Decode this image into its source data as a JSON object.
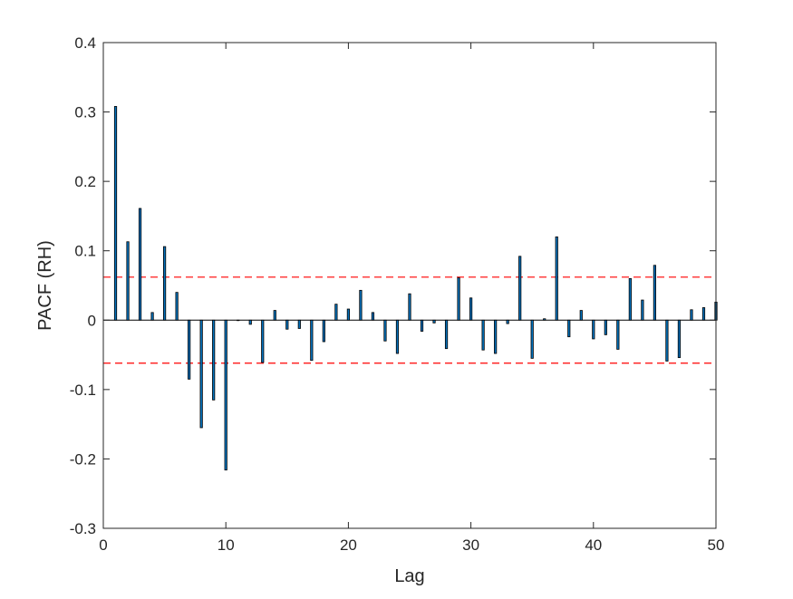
{
  "chart_data": {
    "type": "bar",
    "title": "",
    "xlabel": "Lag",
    "ylabel": "PACF (RH)",
    "xlim": [
      0,
      50
    ],
    "ylim": [
      -0.3,
      0.4
    ],
    "x_ticks": [
      0,
      10,
      20,
      30,
      40,
      50
    ],
    "x_tick_labels": [
      "0",
      "10",
      "20",
      "30",
      "40",
      "50"
    ],
    "y_ticks": [
      -0.3,
      -0.2,
      -0.1,
      0,
      0.1,
      0.2,
      0.3,
      0.4
    ],
    "y_tick_labels": [
      "-0.3",
      "-0.2",
      "-0.1",
      "0",
      "0.1",
      "0.2",
      "0.3",
      "0.4"
    ],
    "grid": false,
    "bar_color": "#0072BD",
    "bar_edge_color": "#000000",
    "confidence_bounds": {
      "upper": 0.062,
      "lower": -0.062,
      "color": "#FF0000",
      "style": "dashed"
    },
    "series": [
      {
        "lags": [
          1,
          2,
          3,
          4,
          5,
          6,
          7,
          8,
          9,
          10,
          11,
          12,
          13,
          14,
          15,
          16,
          17,
          18,
          19,
          20,
          21,
          22,
          23,
          24,
          25,
          26,
          27,
          28,
          29,
          30,
          31,
          32,
          33,
          34,
          35,
          36,
          37,
          38,
          39,
          40,
          41,
          42,
          43,
          44,
          45,
          46,
          47,
          48,
          49,
          50
        ],
        "values": [
          0.308,
          0.113,
          0.161,
          0.011,
          0.106,
          0.04,
          -0.085,
          -0.155,
          -0.115,
          -0.216,
          0.0,
          -0.006,
          -0.061,
          0.014,
          -0.013,
          -0.012,
          -0.058,
          -0.031,
          0.023,
          0.016,
          0.043,
          0.011,
          -0.03,
          -0.048,
          0.038,
          -0.016,
          -0.004,
          -0.041,
          0.061,
          0.032,
          -0.043,
          -0.048,
          -0.005,
          0.092,
          -0.055,
          0.002,
          0.12,
          -0.024,
          0.014,
          -0.027,
          -0.021,
          -0.042,
          0.06,
          0.029,
          0.079,
          -0.059,
          -0.054,
          0.015,
          0.018,
          0.026
        ]
      }
    ]
  }
}
